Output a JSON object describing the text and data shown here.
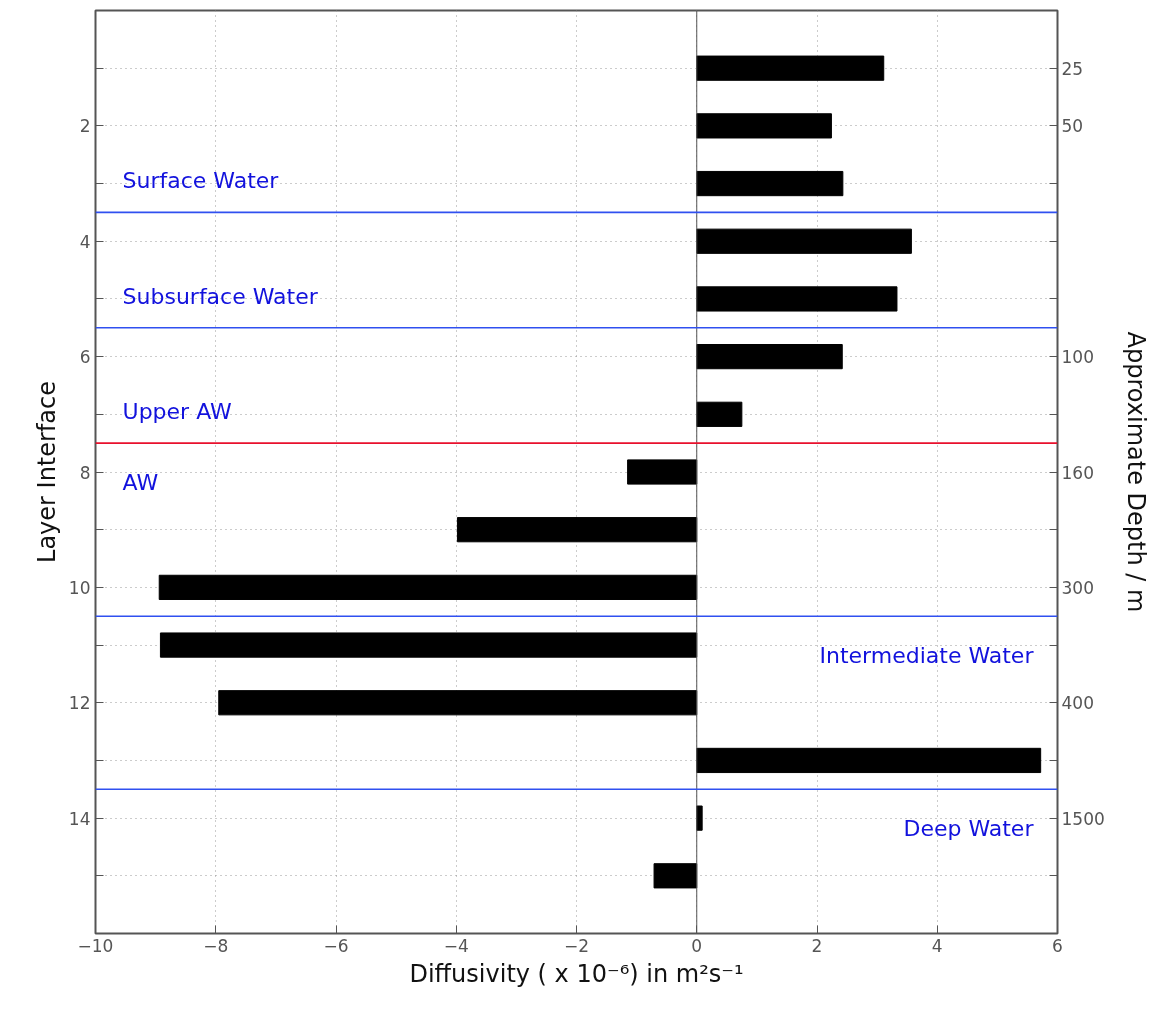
{
  "chart_data": {
    "type": "bar",
    "orientation": "horizontal",
    "xlabel": "Diffusivity ( x 10⁻⁶) in m²s⁻¹",
    "ylabel": "Layer Interface",
    "y2label": "Approximate Depth / m",
    "x": [
      1,
      2,
      3,
      4,
      5,
      6,
      7,
      8,
      9,
      10,
      11,
      12,
      13,
      14,
      15
    ],
    "values": [
      3.11,
      2.24,
      2.43,
      3.57,
      3.33,
      2.42,
      0.75,
      -1.15,
      -3.98,
      -8.94,
      -8.92,
      -7.95,
      5.72,
      0.09,
      -0.71
    ],
    "y2_categories": [
      "25",
      "50",
      null,
      null,
      null,
      "100",
      null,
      "160",
      null,
      "300",
      null,
      "400",
      null,
      "1500",
      null
    ],
    "color": "#000000",
    "xlim": [
      -10,
      6
    ],
    "xticks": [
      {
        "value": -10,
        "label": "−10"
      },
      {
        "value": -8,
        "label": "−8"
      },
      {
        "value": -6,
        "label": "−6"
      },
      {
        "value": -4,
        "label": "−4"
      },
      {
        "value": -2,
        "label": "−2"
      },
      0,
      2,
      4,
      6
    ],
    "ylim": [
      16,
      0
    ],
    "yticks": [
      {
        "value": 1,
        "label": null
      },
      2,
      {
        "value": 3,
        "label": null
      },
      4,
      {
        "value": 5,
        "label": null
      },
      6,
      {
        "value": 7,
        "label": null
      },
      8,
      {
        "value": 9,
        "label": null
      },
      10,
      {
        "value": 11,
        "label": null
      },
      12,
      {
        "value": 13,
        "label": null
      },
      14,
      {
        "value": 15,
        "label": null
      }
    ],
    "grid": true,
    "ref_lines": [
      {
        "axis": "y",
        "value": 3.5,
        "color": "#3050f0"
      },
      {
        "axis": "y",
        "value": 5.5,
        "color": "#3050f0"
      },
      {
        "axis": "y",
        "value": 7.5,
        "color": "#e8102c"
      },
      {
        "axis": "y",
        "value": 10.5,
        "color": "#3050f0"
      },
      {
        "axis": "y",
        "value": 13.5,
        "color": "#3050f0"
      }
    ],
    "annotations": [
      "Surface Water",
      "Subsurface Water",
      "Upper AW",
      "AW",
      "Intermediate Water",
      "Deep Water"
    ]
  }
}
